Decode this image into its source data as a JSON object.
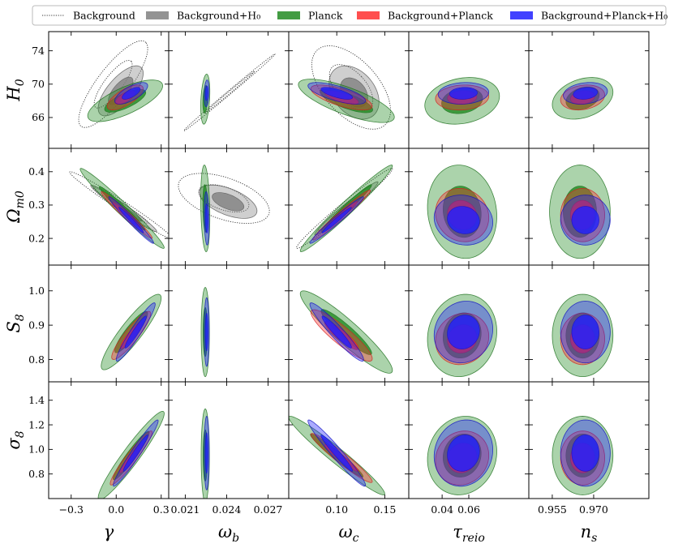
{
  "chart_data": {
    "type": "corner-contour",
    "legend": [
      {
        "label": "Background",
        "style": "dotted",
        "fill": "none",
        "edge": "#333333"
      },
      {
        "label": "Background+H₀",
        "style": "fill",
        "fill": "#808080",
        "edge": "#555555"
      },
      {
        "label": "Planck",
        "style": "fill",
        "fill": "#228b22",
        "edge": "#1a6e1a"
      },
      {
        "label": "Background+Planck",
        "style": "fill",
        "fill": "#ff3030",
        "edge": "#d02020"
      },
      {
        "label": "Background+Planck+H₀",
        "style": "fill",
        "fill": "#2020ff",
        "edge": "#1010c0"
      }
    ],
    "columns": [
      {
        "param": "gamma",
        "label": "γ",
        "range": [
          -0.45,
          0.35
        ],
        "ticks": [
          -0.3,
          0.0,
          0.3
        ],
        "tick_labels": [
          "−0.3",
          "0.0",
          "0.3"
        ]
      },
      {
        "param": "omega_b",
        "label": "ω",
        "sub": "b",
        "range": [
          0.0198,
          0.0285
        ],
        "ticks": [
          0.021,
          0.024,
          0.027
        ],
        "tick_labels": [
          "0.021",
          "0.024",
          "0.027"
        ]
      },
      {
        "param": "omega_c",
        "label": "ω",
        "sub": "c",
        "range": [
          0.05,
          0.175
        ],
        "ticks": [
          0.1,
          0.15
        ],
        "tick_labels": [
          "0.10",
          "0.15"
        ]
      },
      {
        "param": "tau_reio",
        "label": "τ",
        "sub": "reio",
        "range": [
          0.015,
          0.105
        ],
        "ticks": [
          0.04,
          0.06
        ],
        "tick_labels": [
          "0.04",
          "0.06"
        ]
      },
      {
        "param": "n_s",
        "label": "n",
        "sub": "s",
        "range": [
          0.9465,
          0.99
        ],
        "ticks": [
          0.955,
          0.97
        ],
        "tick_labels": [
          "0.955",
          "0.970"
        ]
      }
    ],
    "rows": [
      {
        "param": "H0",
        "label": "H",
        "sub": "0",
        "range": [
          62.3,
          76.3
        ],
        "ticks": [
          66,
          70,
          74
        ],
        "tick_labels": [
          "66",
          "70",
          "74"
        ]
      },
      {
        "param": "Omega_m0",
        "label": "Ω",
        "sub": "m0",
        "range": [
          0.12,
          0.47
        ],
        "ticks": [
          0.2,
          0.3,
          0.4
        ],
        "tick_labels": [
          "0.2",
          "0.3",
          "0.4"
        ]
      },
      {
        "param": "S8",
        "label": "S",
        "sub": "8",
        "range": [
          0.735,
          1.075
        ],
        "ticks": [
          0.8,
          0.9,
          1.0
        ],
        "tick_labels": [
          "0.8",
          "0.9",
          "1.0"
        ]
      },
      {
        "param": "sigma8",
        "label": "σ",
        "sub": "8",
        "range": [
          0.6,
          1.55
        ],
        "ticks": [
          0.8,
          1.0,
          1.2,
          1.4
        ],
        "tick_labels": [
          "0.8",
          "1.0",
          "1.2",
          "1.4"
        ]
      }
    ],
    "contours": {
      "Background": [
        {
          "row": 0,
          "col": 0,
          "cx": -0.02,
          "cy": 70.0,
          "rx": 0.23,
          "ry": 5.2,
          "rho": 0.82
        },
        {
          "row": 0,
          "col": 1,
          "cx": 0.0242,
          "cy": 69.0,
          "rx": 0.0033,
          "ry": 4.6,
          "rho": 0.998
        },
        {
          "row": 0,
          "col": 2,
          "cx": 0.115,
          "cy": 69.6,
          "rx": 0.041,
          "ry": 5.0,
          "rho": -0.55
        },
        {
          "row": 1,
          "col": 0,
          "cx": 0.03,
          "cy": 0.3,
          "rx": 0.34,
          "ry": 0.1,
          "rho": -0.985
        },
        {
          "row": 1,
          "col": 1,
          "cx": 0.0238,
          "cy": 0.32,
          "rx": 0.0033,
          "ry": 0.075,
          "rho": -0.5
        },
        {
          "row": 1,
          "col": 2,
          "cx": 0.108,
          "cy": 0.29,
          "rx": 0.05,
          "ry": 0.12,
          "rho": 0.985
        }
      ],
      "Background+H₀": [
        {
          "row": 0,
          "col": 0,
          "cx": 0.03,
          "cy": 69.2,
          "rx": 0.15,
          "ry": 3.0,
          "rho": 0.7
        },
        {
          "row": 0,
          "col": 2,
          "cx": 0.118,
          "cy": 69.0,
          "rx": 0.026,
          "ry": 3.2,
          "rho": -0.35
        },
        {
          "row": 1,
          "col": 0,
          "cx": 0.05,
          "cy": 0.29,
          "rx": 0.22,
          "ry": 0.07,
          "rho": -0.98
        },
        {
          "row": 1,
          "col": 1,
          "cx": 0.0241,
          "cy": 0.31,
          "rx": 0.0021,
          "ry": 0.05,
          "rho": -0.55
        },
        {
          "row": 1,
          "col": 2,
          "cx": 0.11,
          "cy": 0.29,
          "rx": 0.033,
          "ry": 0.08,
          "rho": 0.98
        }
      ],
      "Planck": [
        {
          "row": 0,
          "col": 0,
          "cx": 0.06,
          "cy": 68.0,
          "rx": 0.25,
          "ry": 2.5,
          "rho": 0.72
        },
        {
          "row": 0,
          "col": 1,
          "cx": 0.02245,
          "cy": 68.2,
          "rx": 0.00033,
          "ry": 3.0,
          "rho": 0.3
        },
        {
          "row": 0,
          "col": 2,
          "cx": 0.11,
          "cy": 68.0,
          "rx": 0.05,
          "ry": 2.6,
          "rho": -0.75
        },
        {
          "row": 0,
          "col": 3,
          "cx": 0.055,
          "cy": 68.0,
          "rx": 0.028,
          "ry": 2.8,
          "rho": 0.2
        },
        {
          "row": 0,
          "col": 4,
          "cx": 0.966,
          "cy": 68.3,
          "rx": 0.011,
          "ry": 2.5,
          "rho": 0.3
        },
        {
          "row": 1,
          "col": 0,
          "cx": 0.04,
          "cy": 0.29,
          "rx": 0.28,
          "ry": 0.12,
          "rho": -0.98
        },
        {
          "row": 1,
          "col": 1,
          "cx": 0.02245,
          "cy": 0.29,
          "rx": 0.00033,
          "ry": 0.13,
          "rho": -0.2
        },
        {
          "row": 1,
          "col": 2,
          "cx": 0.11,
          "cy": 0.29,
          "rx": 0.048,
          "ry": 0.13,
          "rho": 0.98
        },
        {
          "row": 1,
          "col": 3,
          "cx": 0.055,
          "cy": 0.28,
          "rx": 0.026,
          "ry": 0.14,
          "rho": -0.1
        },
        {
          "row": 1,
          "col": 4,
          "cx": 0.965,
          "cy": 0.28,
          "rx": 0.011,
          "ry": 0.14,
          "rho": 0.0
        },
        {
          "row": 2,
          "col": 0,
          "cx": 0.1,
          "cy": 0.88,
          "rx": 0.2,
          "ry": 0.11,
          "rho": 0.9
        },
        {
          "row": 2,
          "col": 1,
          "cx": 0.02245,
          "cy": 0.88,
          "rx": 0.0003,
          "ry": 0.13,
          "rho": 0.0
        },
        {
          "row": 2,
          "col": 2,
          "cx": 0.11,
          "cy": 0.88,
          "rx": 0.048,
          "ry": 0.12,
          "rho": -0.93
        },
        {
          "row": 2,
          "col": 3,
          "cx": 0.055,
          "cy": 0.87,
          "rx": 0.026,
          "ry": 0.12,
          "rho": 0.1
        },
        {
          "row": 2,
          "col": 4,
          "cx": 0.966,
          "cy": 0.87,
          "rx": 0.011,
          "ry": 0.12,
          "rho": 0.0
        },
        {
          "row": 3,
          "col": 0,
          "cx": 0.1,
          "cy": 0.95,
          "rx": 0.22,
          "ry": 0.36,
          "rho": 0.95
        },
        {
          "row": 3,
          "col": 1,
          "cx": 0.02245,
          "cy": 0.95,
          "rx": 0.0003,
          "ry": 0.38,
          "rho": 0.0
        },
        {
          "row": 3,
          "col": 2,
          "cx": 0.1,
          "cy": 0.95,
          "rx": 0.05,
          "ry": 0.32,
          "rho": -0.97
        },
        {
          "row": 3,
          "col": 3,
          "cx": 0.055,
          "cy": 0.95,
          "rx": 0.026,
          "ry": 0.32,
          "rho": 0.1
        },
        {
          "row": 3,
          "col": 4,
          "cx": 0.966,
          "cy": 0.95,
          "rx": 0.011,
          "ry": 0.32,
          "rho": 0.0
        }
      ],
      "Background+Planck": [
        {
          "row": 0,
          "col": 0,
          "cx": 0.06,
          "cy": 68.4,
          "rx": 0.12,
          "ry": 1.5,
          "rho": 0.7
        },
        {
          "row": 0,
          "col": 2,
          "cx": 0.105,
          "cy": 68.4,
          "rx": 0.032,
          "ry": 1.5,
          "rho": -0.7
        },
        {
          "row": 0,
          "col": 3,
          "cx": 0.055,
          "cy": 68.4,
          "rx": 0.02,
          "ry": 1.5,
          "rho": 0.1
        },
        {
          "row": 0,
          "col": 4,
          "cx": 0.966,
          "cy": 68.4,
          "rx": 0.008,
          "ry": 1.5,
          "rho": 0.2
        },
        {
          "row": 1,
          "col": 0,
          "cx": 0.07,
          "cy": 0.27,
          "rx": 0.17,
          "ry": 0.07,
          "rho": -0.98
        },
        {
          "row": 1,
          "col": 2,
          "cx": 0.105,
          "cy": 0.27,
          "rx": 0.03,
          "ry": 0.075,
          "rho": 0.98
        },
        {
          "row": 1,
          "col": 3,
          "cx": 0.055,
          "cy": 0.27,
          "rx": 0.02,
          "ry": 0.08,
          "rho": -0.1
        },
        {
          "row": 1,
          "col": 4,
          "cx": 0.966,
          "cy": 0.27,
          "rx": 0.008,
          "ry": 0.08,
          "rho": 0.0
        },
        {
          "row": 2,
          "col": 0,
          "cx": 0.1,
          "cy": 0.87,
          "rx": 0.13,
          "ry": 0.07,
          "rho": 0.9
        },
        {
          "row": 2,
          "col": 2,
          "cx": 0.105,
          "cy": 0.87,
          "rx": 0.032,
          "ry": 0.075,
          "rho": -0.9
        },
        {
          "row": 2,
          "col": 3,
          "cx": 0.055,
          "cy": 0.86,
          "rx": 0.02,
          "ry": 0.075,
          "rho": 0.1
        },
        {
          "row": 2,
          "col": 4,
          "cx": 0.966,
          "cy": 0.86,
          "rx": 0.008,
          "ry": 0.075,
          "rho": 0.0
        },
        {
          "row": 3,
          "col": 0,
          "cx": 0.1,
          "cy": 0.93,
          "rx": 0.14,
          "ry": 0.22,
          "rho": 0.95
        },
        {
          "row": 3,
          "col": 2,
          "cx": 0.105,
          "cy": 0.93,
          "rx": 0.032,
          "ry": 0.2,
          "rho": -0.96
        },
        {
          "row": 3,
          "col": 3,
          "cx": 0.055,
          "cy": 0.93,
          "rx": 0.02,
          "ry": 0.22,
          "rho": 0.1
        },
        {
          "row": 3,
          "col": 4,
          "cx": 0.966,
          "cy": 0.93,
          "rx": 0.008,
          "ry": 0.22,
          "rho": 0.0
        }
      ],
      "Background+Planck+H₀": [
        {
          "row": 0,
          "col": 0,
          "cx": 0.1,
          "cy": 68.9,
          "rx": 0.11,
          "ry": 1.3,
          "rho": 0.7
        },
        {
          "row": 0,
          "col": 1,
          "cx": 0.02255,
          "cy": 68.9,
          "rx": 0.00018,
          "ry": 1.6,
          "rho": 0.2
        },
        {
          "row": 0,
          "col": 2,
          "cx": 0.1,
          "cy": 68.9,
          "rx": 0.03,
          "ry": 1.3,
          "rho": -0.7
        },
        {
          "row": 0,
          "col": 3,
          "cx": 0.056,
          "cy": 68.9,
          "rx": 0.019,
          "ry": 1.3,
          "rho": 0.1
        },
        {
          "row": 0,
          "col": 4,
          "cx": 0.967,
          "cy": 68.9,
          "rx": 0.008,
          "ry": 1.3,
          "rho": 0.2
        },
        {
          "row": 1,
          "col": 0,
          "cx": 0.1,
          "cy": 0.255,
          "rx": 0.15,
          "ry": 0.07,
          "rho": -0.98
        },
        {
          "row": 1,
          "col": 1,
          "cx": 0.02255,
          "cy": 0.26,
          "rx": 0.00018,
          "ry": 0.08,
          "rho": -0.2
        },
        {
          "row": 1,
          "col": 2,
          "cx": 0.1,
          "cy": 0.255,
          "rx": 0.028,
          "ry": 0.07,
          "rho": 0.98
        },
        {
          "row": 1,
          "col": 3,
          "cx": 0.056,
          "cy": 0.255,
          "rx": 0.022,
          "ry": 0.075,
          "rho": -0.1
        },
        {
          "row": 1,
          "col": 4,
          "cx": 0.967,
          "cy": 0.255,
          "rx": 0.009,
          "ry": 0.075,
          "rho": 0.0
        },
        {
          "row": 2,
          "col": 0,
          "cx": 0.13,
          "cy": 0.88,
          "rx": 0.13,
          "ry": 0.085,
          "rho": 0.95
        },
        {
          "row": 2,
          "col": 1,
          "cx": 0.02255,
          "cy": 0.88,
          "rx": 0.00018,
          "ry": 0.1,
          "rho": 0.0
        },
        {
          "row": 2,
          "col": 2,
          "cx": 0.1,
          "cy": 0.88,
          "rx": 0.028,
          "ry": 0.085,
          "rho": -0.95
        },
        {
          "row": 2,
          "col": 3,
          "cx": 0.056,
          "cy": 0.88,
          "rx": 0.022,
          "ry": 0.09,
          "rho": 0.1
        },
        {
          "row": 2,
          "col": 4,
          "cx": 0.967,
          "cy": 0.88,
          "rx": 0.009,
          "ry": 0.09,
          "rho": 0.0
        },
        {
          "row": 3,
          "col": 0,
          "cx": 0.13,
          "cy": 0.97,
          "rx": 0.15,
          "ry": 0.27,
          "rho": 0.97
        },
        {
          "row": 3,
          "col": 1,
          "cx": 0.02255,
          "cy": 0.97,
          "rx": 0.00018,
          "ry": 0.3,
          "rho": 0.0
        },
        {
          "row": 3,
          "col": 2,
          "cx": 0.1,
          "cy": 0.97,
          "rx": 0.03,
          "ry": 0.27,
          "rho": -0.97
        },
        {
          "row": 3,
          "col": 3,
          "cx": 0.056,
          "cy": 0.97,
          "rx": 0.022,
          "ry": 0.27,
          "rho": 0.1
        },
        {
          "row": 3,
          "col": 4,
          "cx": 0.967,
          "cy": 0.97,
          "rx": 0.009,
          "ry": 0.27,
          "rho": 0.0
        }
      ]
    }
  }
}
